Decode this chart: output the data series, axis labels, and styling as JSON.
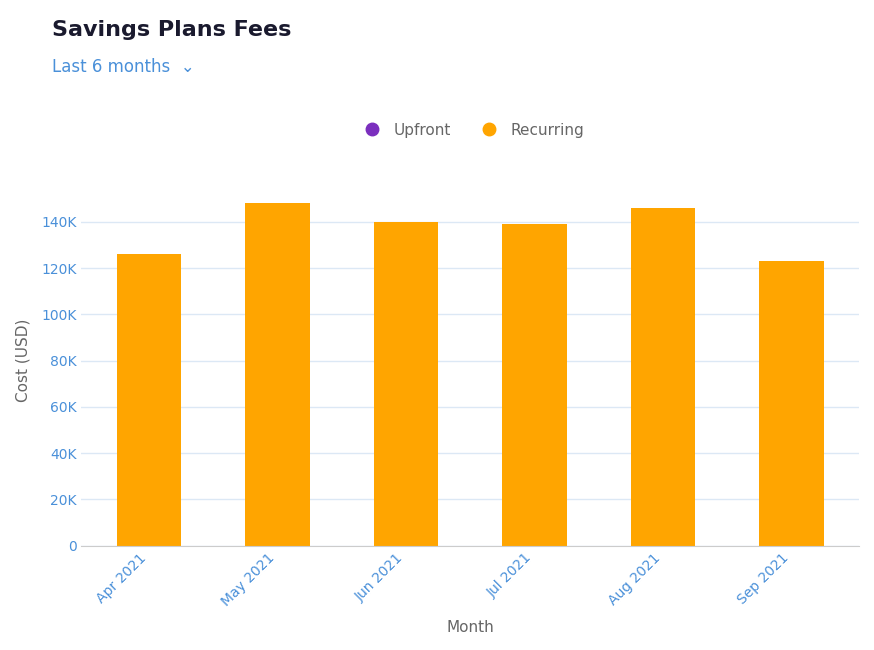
{
  "title": "Savings Plans Fees",
  "subtitle": "Last 6 months",
  "xlabel": "Month",
  "ylabel": "Cost (USD)",
  "categories": [
    "Apr 2021",
    "May 2021",
    "Jun 2021",
    "Jul 2021",
    "Aug 2021",
    "Sep 2021"
  ],
  "recurring_values": [
    126000,
    148000,
    140000,
    139000,
    146000,
    123000
  ],
  "upfront_values": [
    0,
    0,
    0,
    0,
    0,
    0
  ],
  "recurring_color": "#FFA500",
  "upfront_color": "#7B2FBE",
  "bar_width": 0.5,
  "ylim": [
    0,
    160000
  ],
  "yticks": [
    0,
    20000,
    40000,
    60000,
    80000,
    100000,
    120000,
    140000
  ],
  "ytick_labels": [
    "0",
    "20K",
    "40K",
    "60K",
    "80K",
    "100K",
    "120K",
    "140K"
  ],
  "background_color": "#ffffff",
  "plot_bg_color": "#ffffff",
  "grid_color": "#dce8f5",
  "tick_color": "#4a90d9",
  "label_color": "#666666",
  "title_color": "#1a1a2e",
  "subtitle_color": "#4a90d9",
  "legend_upfront_label": "Upfront",
  "legend_recurring_label": "Recurring",
  "title_fontsize": 16,
  "subtitle_fontsize": 12,
  "axis_label_fontsize": 11,
  "tick_fontsize": 10,
  "legend_fontsize": 11
}
